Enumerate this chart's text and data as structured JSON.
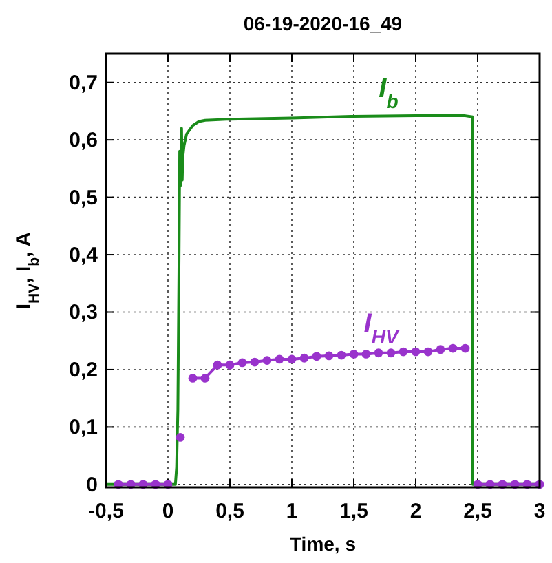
{
  "chart_data": {
    "type": "line",
    "title": "06-19-2020-16_49",
    "xlabel": "Time, s",
    "ylabel": "I$_{HV}$, I$_{b}$, A",
    "xlim": [
      -0.5,
      3
    ],
    "ylim": [
      -0.005,
      0.75
    ],
    "xticks": [
      {
        "value": -0.5,
        "label": "-0,5"
      },
      0,
      {
        "value": 0.5,
        "label": "0,5"
      },
      1,
      {
        "value": 1.5,
        "label": "1,5"
      },
      2,
      {
        "value": 2.5,
        "label": "2,5"
      },
      3
    ],
    "yticks": [
      0,
      {
        "value": 0.1,
        "label": "0,1"
      },
      {
        "value": 0.2,
        "label": "0,2"
      },
      {
        "value": 0.3,
        "label": "0,3"
      },
      {
        "value": 0.4,
        "label": "0,4"
      },
      {
        "value": 0.5,
        "label": "0,5"
      },
      {
        "value": 0.6,
        "label": "0,6"
      },
      {
        "value": 0.7,
        "label": "0,7"
      }
    ],
    "grid": true,
    "series": [
      {
        "name": "I$_{b}$",
        "color": "#1a8c1a",
        "marker": "none",
        "x": [
          -0.5,
          0.06,
          0.07,
          0.08,
          0.085,
          0.09,
          0.095,
          0.1,
          0.11,
          0.115,
          0.12,
          0.13,
          0.15,
          0.2,
          0.25,
          0.3,
          0.5,
          1.0,
          1.5,
          2.0,
          2.4,
          2.46,
          2.46,
          3.0
        ],
        "values": [
          0,
          0,
          0.03,
          0.13,
          0.27,
          0.41,
          0.58,
          0.52,
          0.62,
          0.53,
          0.57,
          0.59,
          0.61,
          0.625,
          0.632,
          0.634,
          0.636,
          0.638,
          0.641,
          0.642,
          0.642,
          0.64,
          0,
          0
        ]
      },
      {
        "name": "I$_{HV}$",
        "color": "#9933cc",
        "marker": "circle",
        "x": [
          -0.4,
          -0.3,
          -0.2,
          -0.1,
          0,
          0.05,
          0.1,
          0.15,
          0.2,
          0.3,
          0.4,
          0.5,
          0.6,
          0.7,
          0.8,
          0.9,
          1.0,
          1.1,
          1.2,
          1.3,
          1.4,
          1.5,
          1.6,
          1.7,
          1.8,
          1.9,
          2.0,
          2.1,
          2.2,
          2.3,
          2.4,
          2.45,
          2.5,
          2.6,
          2.7,
          2.8,
          2.9,
          3.0
        ],
        "values": [
          0,
          0,
          0,
          0,
          0,
          null,
          0.082,
          null,
          0.185,
          0.185,
          0.208,
          0.208,
          0.212,
          0.213,
          0.216,
          0.218,
          0.218,
          0.22,
          0.223,
          0.224,
          0.225,
          0.227,
          0.227,
          0.229,
          0.229,
          0.231,
          0.231,
          0.231,
          0.235,
          0.237,
          0.237,
          null,
          0,
          0,
          0,
          0,
          0,
          0
        ]
      }
    ]
  }
}
